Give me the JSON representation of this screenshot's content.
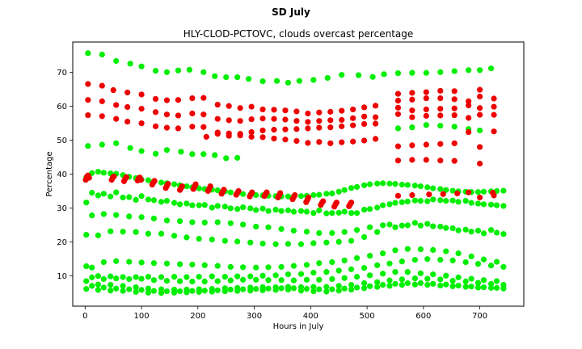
{
  "figure": {
    "suptitle": "SD July"
  },
  "chart_data": {
    "type": "scatter",
    "title": "HLY-CLOD-PCTOVC, clouds overcast percentage",
    "xlabel": "Hours in July",
    "ylabel": "Percentage",
    "xlim": [
      -22,
      778
    ],
    "ylim": [
      1,
      79
    ],
    "xticks": [
      0,
      100,
      200,
      300,
      400,
      500,
      600,
      700
    ],
    "yticks": [
      10,
      20,
      30,
      40,
      50,
      60,
      70
    ],
    "grid": false,
    "colors": {
      "green": "#00ee00",
      "red": "#ee0000"
    },
    "hours_green": [
      2,
      12,
      23,
      33,
      45,
      55,
      67,
      78,
      90,
      100,
      112,
      122,
      135,
      145,
      158,
      168,
      180,
      190,
      202,
      212,
      225,
      235,
      248,
      258,
      270,
      280,
      293,
      303,
      315,
      325,
      338,
      348,
      360,
      370,
      383,
      393,
      405,
      415,
      428,
      438,
      450,
      460,
      472,
      482,
      495,
      505,
      518,
      528,
      540,
      550,
      562,
      572,
      585,
      595,
      607,
      617,
      630,
      640,
      652,
      662,
      675,
      685,
      697,
      707,
      720,
      730,
      742
    ],
    "series": [
      {
        "color": "green",
        "hours": [
          5,
          30,
          55,
          80,
          100,
          125,
          145,
          165,
          185,
          210,
          230,
          250,
          270,
          290,
          315,
          340,
          360,
          380,
          405,
          430,
          455,
          485,
          510,
          530,
          555,
          580,
          605,
          630,
          655,
          680,
          700,
          720
        ],
        "values": [
          75.7,
          75.3,
          73.4,
          72.6,
          71.8,
          70.5,
          70.1,
          70.6,
          70.8,
          70.1,
          68.9,
          68.6,
          68.6,
          68.1,
          67.4,
          67.5,
          67.0,
          67.5,
          67.8,
          68.4,
          69.3,
          69.2,
          68.7,
          69.5,
          69.8,
          69.9,
          69.9,
          70.1,
          70.4,
          70.7,
          70.7,
          71.2
        ]
      },
      {
        "color": "green",
        "hours": [
          5,
          30,
          55,
          80,
          100,
          125,
          145,
          170,
          190,
          210,
          230,
          250,
          270
        ],
        "values": [
          48.3,
          48.7,
          49.1,
          47.7,
          46.8,
          46.0,
          47.1,
          46.6,
          45.9,
          45.9,
          45.6,
          44.7,
          44.8
        ]
      },
      {
        "color": "green",
        "hours": [
          555,
          580,
          605,
          630,
          655,
          680,
          700
        ],
        "values": [
          53.5,
          53.8,
          54.5,
          54.3,
          54.0,
          53.3,
          52.9
        ]
      },
      {
        "color": "green",
        "values": [
          39,
          40.3,
          40.7,
          40.4,
          40.2,
          40.1,
          39.7,
          39.2,
          38.8,
          38.4,
          38.2,
          37.9,
          37.5,
          37.3,
          37.0,
          36.7,
          36.4,
          36.1,
          35.8,
          35.6,
          35.4,
          35.2,
          34.9,
          34.6,
          34.3,
          34.1,
          33.9,
          33.8,
          33.7,
          33.6,
          33.5,
          33.4,
          33.4,
          33.4,
          33.5,
          33.6,
          33.8,
          33.9,
          34.2,
          34.3,
          34.8,
          35.3,
          35.9,
          36.2,
          36.7,
          37.0,
          37.2,
          37.3,
          37.2,
          37.1,
          36.9,
          36.8,
          36.6,
          36.4,
          36.1,
          35.8,
          35.6,
          35.3,
          35.1,
          34.9,
          34.8,
          34.7,
          34.7,
          34.8,
          34.9,
          35.0,
          35.1
        ]
      },
      {
        "color": "green",
        "values": [
          31.6,
          34.5,
          33.7,
          34.2,
          33.4,
          34.6,
          33.1,
          33.2,
          32.4,
          33.5,
          32.5,
          32.3,
          31.8,
          32.1,
          31.5,
          31.1,
          31.3,
          30.8,
          30.8,
          30.9,
          30.1,
          30.6,
          30.4,
          29.9,
          29.7,
          30.2,
          29.9,
          29.4,
          29.8,
          29.1,
          29.5,
          29.1,
          29.3,
          28.9,
          29.1,
          28.9,
          28.5,
          29.3,
          28.4,
          28.5,
          28.6,
          28.9,
          28.5,
          28.5,
          29.5,
          29.7,
          30.1,
          30.8,
          31.1,
          31.5,
          31.7,
          31.9,
          32.2,
          32.1,
          32.0,
          32.5,
          32.3,
          32.1,
          32.2,
          31.8,
          32.1,
          31.5,
          31.3,
          31.1,
          31.0,
          30.8,
          30.6
        ]
      },
      {
        "color": "green",
        "values": [
          22.1,
          27.8,
          21.9,
          28.2,
          23.1,
          27.9,
          23.0,
          27.5,
          22.9,
          27.3,
          22.4,
          26.9,
          22.4,
          26.3,
          21.8,
          26.1,
          21.3,
          25.8,
          20.9,
          25.7,
          20.7,
          25.8,
          20.3,
          25.5,
          20.1,
          25.1,
          19.8,
          24.5,
          19.5,
          24.3,
          19.3,
          23.8,
          19.4,
          23.3,
          19.3,
          23.0,
          19.6,
          22.6,
          19.8,
          22.6,
          20.0,
          22.9,
          20.3,
          23.5,
          21.4,
          24.3,
          22.9,
          24.9,
          25.1,
          24.3,
          24.8,
          24.9,
          25.6,
          24.8,
          25.3,
          24.6,
          24.5,
          24.1,
          24.0,
          23.4,
          23.6,
          23.0,
          23.3,
          22.5,
          23.5,
          22.7,
          22.3
        ]
      },
      {
        "color": "green",
        "values": [
          12.8,
          12.4,
          9.9,
          14.0,
          9.8,
          14.3,
          9.6,
          14.1,
          9.6,
          13.9,
          9.7,
          13.7,
          9.6,
          13.6,
          9.7,
          13.4,
          9.6,
          13.3,
          9.7,
          13.1,
          9.8,
          12.9,
          9.7,
          12.6,
          9.8,
          12.5,
          9.8,
          12.4,
          10.0,
          12.5,
          10.1,
          12.6,
          10.4,
          12.9,
          10.5,
          13.2,
          10.9,
          13.7,
          11.1,
          14.0,
          11.5,
          14.5,
          11.9,
          15.2,
          12.3,
          15.9,
          13.1,
          16.6,
          13.6,
          17.5,
          14.2,
          17.9,
          14.7,
          17.8,
          14.9,
          17.6,
          14.7,
          17.2,
          14.5,
          16.6,
          14.0,
          15.7,
          13.5,
          14.8,
          13.0,
          14.1,
          12.6
        ]
      },
      {
        "color": "green",
        "values": [
          8.4,
          9.5,
          7.4,
          9.0,
          7.3,
          9.2,
          7.0,
          9.0,
          6.6,
          9.1,
          6.2,
          8.7,
          6.0,
          8.5,
          5.9,
          8.4,
          5.9,
          8.3,
          6.0,
          8.3,
          6.1,
          8.4,
          6.3,
          8.6,
          6.4,
          8.8,
          6.5,
          8.8,
          6.6,
          8.7,
          6.6,
          8.7,
          6.7,
          8.6,
          6.6,
          8.8,
          6.7,
          8.8,
          6.7,
          9.0,
          7.0,
          9.3,
          7.3,
          9.7,
          7.8,
          10.1,
          8.1,
          10.6,
          8.6,
          11.1,
          8.9,
          11.1,
          9.2,
          10.7,
          9.1,
          10.4,
          8.9,
          10.0,
          8.5,
          9.5,
          8.3,
          9.1,
          7.9,
          8.7,
          7.6,
          8.4,
          7.3
        ]
      },
      {
        "color": "green",
        "values": [
          6.1,
          7.0,
          5.8,
          6.5,
          5.6,
          6.2,
          5.5,
          6.0,
          5.2,
          5.8,
          5.0,
          5.5,
          4.9,
          5.4,
          5.0,
          5.4,
          5.1,
          5.5,
          5.2,
          5.6,
          5.3,
          5.7,
          5.4,
          5.9,
          5.5,
          6.0,
          5.6,
          6.1,
          5.7,
          6.2,
          5.8,
          6.3,
          5.9,
          6.3,
          5.6,
          6.1,
          5.4,
          6.0,
          5.3,
          6.0,
          5.6,
          6.2,
          5.9,
          6.5,
          6.3,
          6.9,
          6.7,
          7.3,
          7.0,
          7.6,
          7.3,
          7.8,
          7.4,
          7.8,
          7.3,
          7.6,
          7.1,
          7.4,
          6.9,
          7.1,
          6.7,
          6.8,
          6.5,
          6.6,
          6.4,
          6.4,
          6.2
        ]
      },
      {
        "color": "red",
        "hours": [
          5,
          30,
          50,
          75,
          100,
          125,
          145,
          165,
          190,
          210,
          235,
          255,
          275,
          295,
          315,
          335,
          355,
          375,
          395,
          415,
          435,
          455,
          475,
          495,
          515,
          555,
          580,
          605,
          630,
          655,
          680,
          700,
          725
        ],
        "values": [
          66.6,
          66.1,
          64.8,
          64.1,
          63.5,
          62.2,
          61.8,
          61.9,
          62.4,
          62.5,
          60.5,
          60.1,
          59.5,
          59.9,
          59.1,
          59.0,
          58.8,
          58.5,
          57.9,
          58.2,
          58.4,
          58.7,
          59.1,
          59.7,
          60.2,
          63.7,
          64.0,
          64.2,
          64.6,
          64.5,
          61.5,
          64.9,
          62.3
        ]
      },
      {
        "color": "red",
        "hours": [
          5,
          30,
          55,
          75,
          100,
          125,
          145,
          165,
          190,
          210,
          235,
          255,
          275,
          295,
          315,
          335,
          355,
          375,
          395,
          415,
          435,
          455,
          475,
          495,
          515,
          555,
          580,
          605,
          630,
          655,
          680,
          700,
          725
        ],
        "values": [
          61.9,
          61.5,
          60.4,
          59.8,
          59.3,
          58.3,
          57.6,
          57.3,
          57.9,
          57.6,
          56.3,
          55.9,
          55.7,
          56.2,
          56.4,
          56.3,
          56.1,
          55.7,
          55.4,
          55.7,
          55.9,
          56.0,
          56.5,
          57.0,
          56.8,
          61.7,
          62.0,
          62.4,
          62.4,
          62.1,
          60.3,
          62.9,
          59.9
        ]
      },
      {
        "color": "red",
        "hours": [
          5,
          30,
          55,
          75,
          100,
          125,
          145,
          165,
          190,
          210,
          235,
          255,
          275,
          295,
          315,
          335,
          355,
          375,
          395,
          415,
          435,
          455,
          475,
          495,
          515,
          555,
          580,
          605,
          630,
          655,
          680,
          700,
          725
        ],
        "values": [
          57.4,
          57.1,
          56.3,
          55.5,
          55.0,
          54.1,
          53.7,
          53.5,
          54.0,
          53.9,
          52.3,
          52.0,
          51.9,
          52.4,
          52.9,
          53.1,
          53.2,
          53.3,
          53.5,
          53.7,
          53.8,
          54.1,
          54.4,
          54.8,
          54.9,
          59.6,
          58.8,
          59.1,
          59.3,
          59.4,
          56.6,
          59.5,
          57.5
        ]
      },
      {
        "color": "red",
        "hours": [
          215,
          235,
          255,
          275,
          295,
          315,
          335,
          355,
          375,
          395,
          415,
          435,
          455,
          475,
          495,
          515,
          555,
          580,
          605,
          630,
          655,
          680,
          700,
          725
        ],
        "values": [
          51.0,
          51.9,
          51.3,
          51.4,
          51.0,
          50.9,
          50.5,
          50.2,
          49.8,
          49.2,
          49.5,
          49.1,
          49.4,
          49.6,
          49.9,
          50.4,
          57.7,
          56.8,
          57.2,
          57.3,
          57.4,
          52.4,
          57.5,
          52.6
        ]
      },
      {
        "color": "red",
        "hours": [
          555,
          580,
          605,
          630,
          655,
          700
        ],
        "values": [
          48.2,
          48.5,
          48.7,
          48.9,
          49.1,
          48.0
        ]
      },
      {
        "color": "red",
        "hours": [
          555,
          580,
          605,
          630,
          655,
          700
        ],
        "values": [
          44.0,
          44.2,
          44.2,
          44.0,
          43.9,
          43.1
        ]
      },
      {
        "color": "red",
        "hours": [
          1,
          3,
          5,
          7,
          47,
          49,
          51,
          69,
          71,
          73,
          93,
          95,
          97,
          99,
          119,
          121,
          123,
          143,
          145,
          147,
          168,
          170,
          172,
          192,
          194,
          196,
          218,
          220,
          222,
          242,
          244,
          246,
          268,
          270,
          272,
          292,
          294,
          296,
          318,
          320,
          322,
          342,
          344,
          346,
          368,
          370,
          372,
          392,
          394,
          396,
          418,
          420,
          422,
          442,
          444,
          446,
          468,
          470,
          472,
          555,
          580,
          610,
          635,
          660,
          680,
          700,
          723,
          725
        ],
        "values": [
          38.3,
          39.2,
          39.6,
          38.9,
          38.3,
          39.0,
          39.3,
          37.9,
          38.6,
          39.1,
          38.1,
          38.8,
          39.0,
          38.3,
          36.9,
          37.5,
          38.0,
          35.9,
          36.5,
          37.1,
          35.3,
          35.8,
          36.4,
          35.6,
          36.3,
          37.0,
          35.0,
          35.7,
          36.4,
          34.2,
          34.8,
          35.4,
          33.9,
          34.5,
          35.0,
          33.4,
          34.0,
          34.6,
          33.5,
          34.1,
          34.6,
          33.1,
          33.7,
          34.4,
          32.6,
          33.2,
          33.8,
          31.7,
          32.4,
          33.1,
          30.9,
          31.5,
          32.0,
          30.4,
          31.1,
          31.6,
          30.5,
          31.1,
          31.6,
          33.6,
          33.8,
          34.0,
          34.1,
          34.3,
          34.6,
          33.1,
          34.5,
          33.7
        ]
      }
    ]
  }
}
